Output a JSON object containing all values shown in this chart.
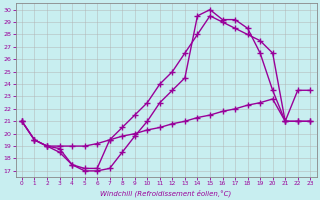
{
  "xlabel": "Windchill (Refroidissement éolien,°C)",
  "ylabel": "",
  "xlim": [
    -0.5,
    23.5
  ],
  "ylim": [
    16.5,
    30.5
  ],
  "xticks": [
    0,
    1,
    2,
    3,
    4,
    5,
    6,
    7,
    8,
    9,
    10,
    11,
    12,
    13,
    14,
    15,
    16,
    17,
    18,
    19,
    20,
    21,
    22,
    23
  ],
  "yticks": [
    17,
    18,
    19,
    20,
    21,
    22,
    23,
    24,
    25,
    26,
    27,
    28,
    29,
    30
  ],
  "bg_color": "#c8eef0",
  "grid_color": "#b0b0b0",
  "line_color": "#990099",
  "line1_x": [
    0,
    1,
    2,
    3,
    4,
    5,
    6,
    7,
    8,
    9,
    10,
    11,
    12,
    13,
    14,
    15,
    16,
    17,
    18,
    19,
    20,
    21,
    22,
    23
  ],
  "line1_y": [
    21.0,
    19.5,
    19.0,
    19.0,
    19.0,
    19.0,
    19.2,
    19.5,
    19.8,
    20.0,
    20.3,
    20.5,
    20.8,
    21.0,
    21.3,
    21.5,
    21.8,
    22.0,
    22.3,
    22.5,
    22.8,
    21.0,
    21.0,
    21.0
  ],
  "line2_x": [
    0,
    1,
    2,
    3,
    4,
    5,
    6,
    7,
    8,
    9,
    10,
    11,
    12,
    13,
    14,
    15,
    16,
    17,
    18,
    19,
    20,
    21,
    22,
    23
  ],
  "line2_y": [
    21.0,
    19.5,
    19.0,
    18.5,
    17.5,
    17.2,
    17.2,
    19.5,
    20.5,
    21.5,
    22.5,
    24.0,
    25.0,
    26.5,
    28.0,
    29.5,
    29.0,
    28.5,
    28.0,
    27.5,
    26.5,
    21.0,
    21.0,
    21.0
  ],
  "line3_x": [
    0,
    1,
    2,
    3,
    4,
    5,
    6,
    7,
    8,
    9,
    10,
    11,
    12,
    13,
    14,
    15,
    16,
    17,
    18,
    19,
    20,
    21,
    22,
    23
  ],
  "line3_y": [
    21.0,
    19.5,
    19.0,
    18.8,
    17.5,
    17.0,
    17.0,
    17.2,
    18.5,
    19.8,
    21.0,
    22.5,
    23.5,
    24.5,
    29.5,
    30.0,
    29.2,
    29.2,
    28.5,
    26.5,
    23.5,
    21.0,
    23.5,
    23.5
  ],
  "marker": "+",
  "markersize": 4,
  "linewidth": 1.0
}
